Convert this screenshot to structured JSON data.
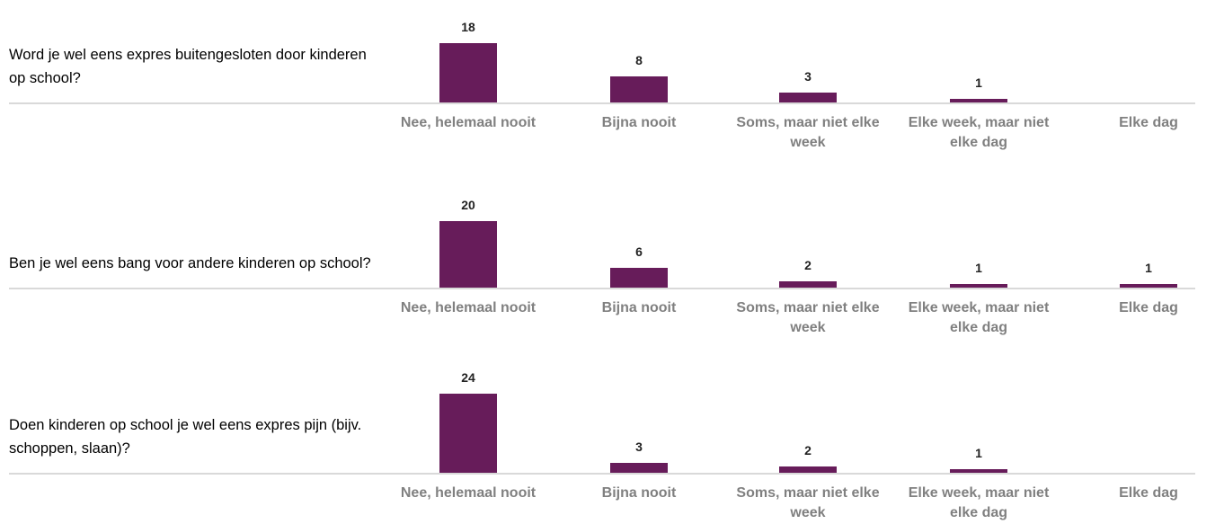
{
  "chart_data": [
    {
      "type": "bar",
      "title": "Word je wel eens expres buitengesloten door kinderen op school?",
      "categories": [
        "Nee, helemaal nooit",
        "Bijna nooit",
        "Soms, maar niet elke week",
        "Elke week, maar niet elke dag",
        "Elke dag"
      ],
      "values": [
        18,
        8,
        3,
        1,
        null
      ],
      "color": "#671c5a"
    },
    {
      "type": "bar",
      "title": "Ben je wel eens bang voor andere kinderen op school?",
      "categories": [
        "Nee, helemaal nooit",
        "Bijna nooit",
        "Soms, maar niet elke week",
        "Elke week, maar niet elke dag",
        "Elke dag"
      ],
      "values": [
        20,
        6,
        2,
        1,
        1
      ],
      "color": "#671c5a"
    },
    {
      "type": "bar",
      "title": "Doen kinderen op school je wel eens expres pijn (bijv. schoppen, slaan)?",
      "categories": [
        "Nee, helemaal nooit",
        "Bijna nooit",
        "Soms, maar niet elke week",
        "Elke week, maar niet elke dag",
        "Elke dag"
      ],
      "values": [
        24,
        3,
        2,
        1,
        null
      ],
      "color": "#671c5a"
    }
  ]
}
